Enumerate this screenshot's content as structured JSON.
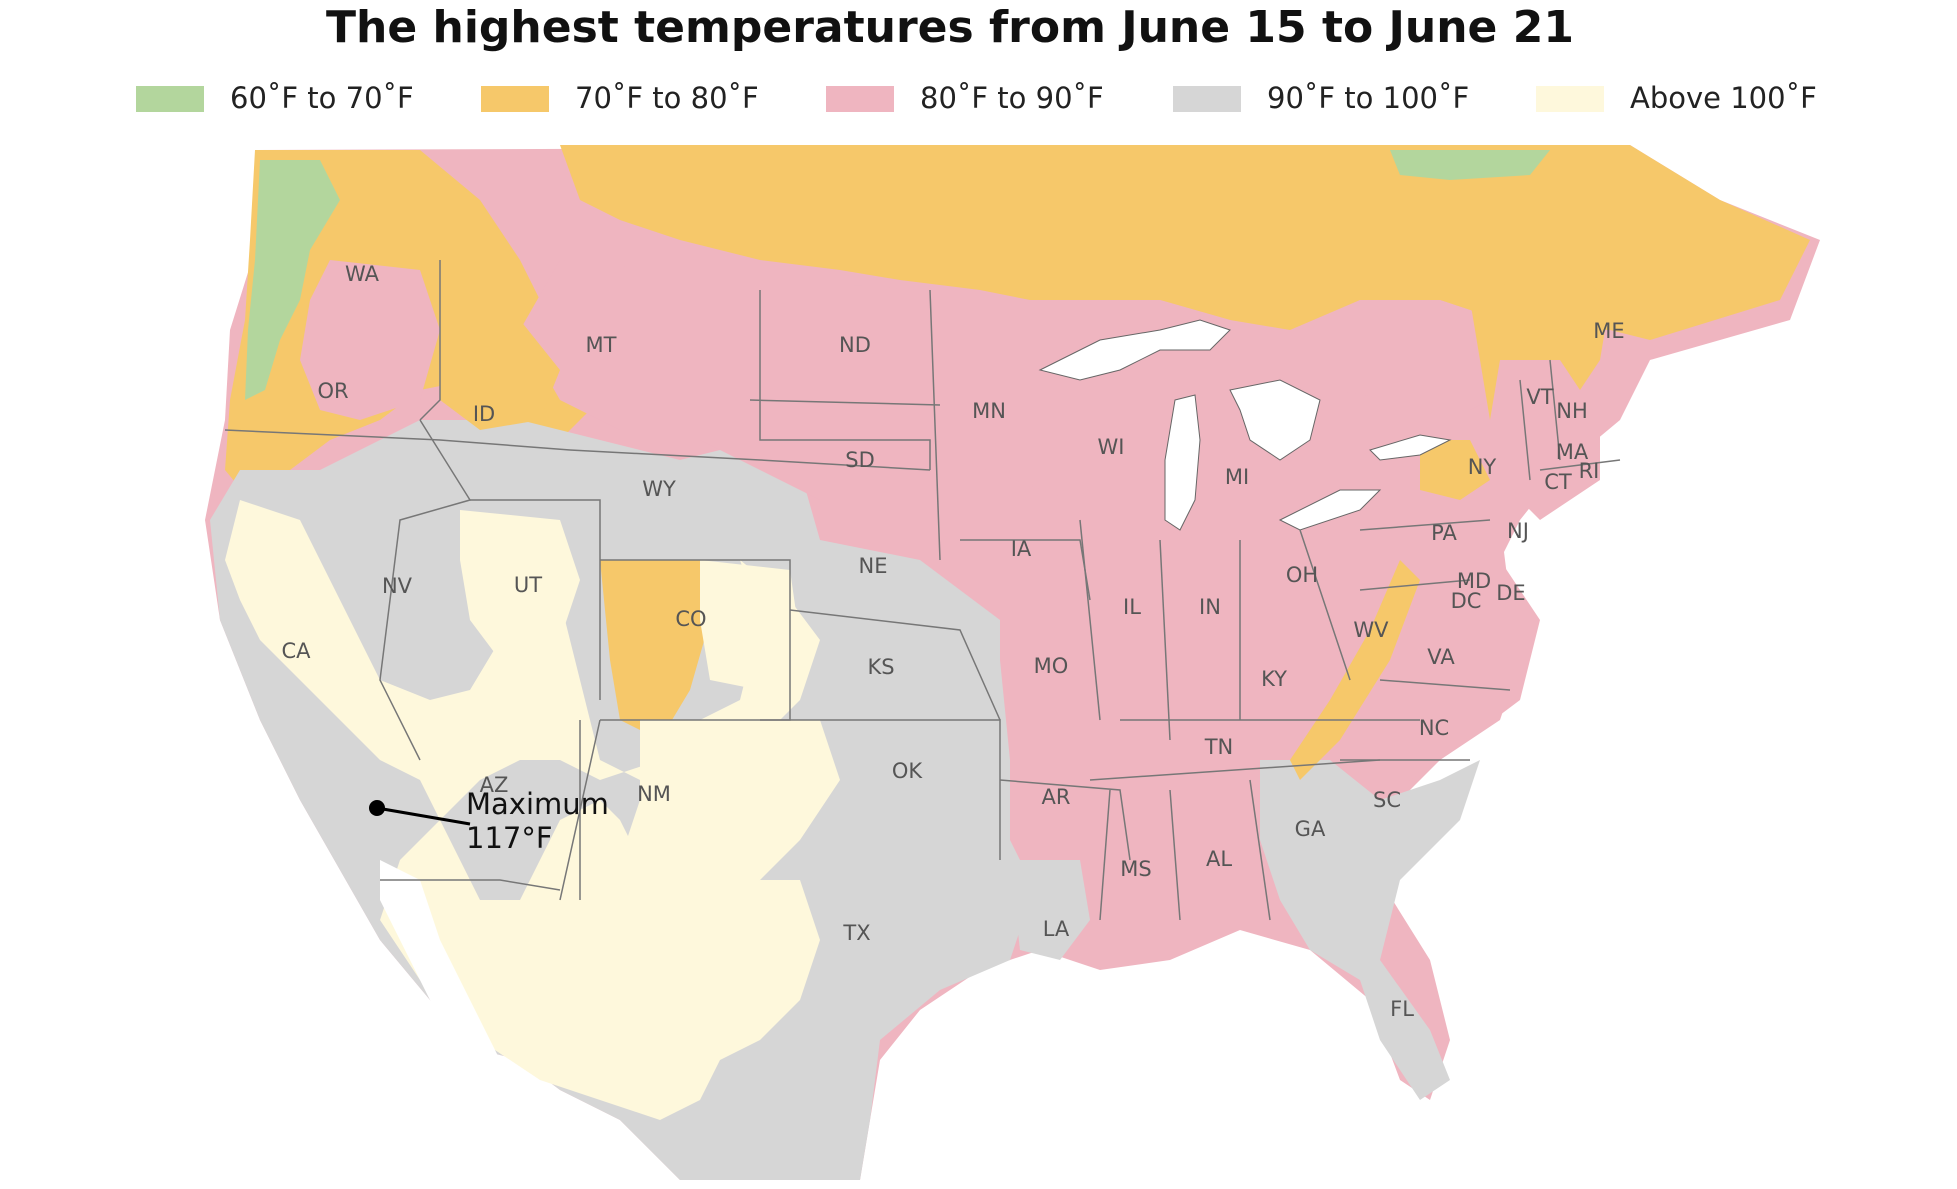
{
  "title": "The highest temperatures from June 15 to June 21",
  "legend": [
    {
      "label": "60˚F to 70˚F",
      "color": "#b3d69d"
    },
    {
      "label": "70˚F to 80˚F",
      "color": "#f6c86a"
    },
    {
      "label": "80˚F to 90˚F",
      "color": "#efb5c0"
    },
    {
      "label": "90˚F to 100˚F",
      "color": "#d6d6d6"
    },
    {
      "label": "Above 100˚F",
      "color": "#fef8dc"
    }
  ],
  "annotation": {
    "line1": "Maximum",
    "line2": "117°F"
  },
  "state_labels": [
    "WA",
    "OR",
    "CA",
    "NV",
    "ID",
    "MT",
    "WY",
    "UT",
    "AZ",
    "CO",
    "NM",
    "ND",
    "SD",
    "NE",
    "KS",
    "OK",
    "TX",
    "MN",
    "IA",
    "MO",
    "AR",
    "LA",
    "WI",
    "IL",
    "MI",
    "IN",
    "OH",
    "KY",
    "TN",
    "MS",
    "AL",
    "GA",
    "FL",
    "SC",
    "NC",
    "VA",
    "WV",
    "PA",
    "NY",
    "VT",
    "NH",
    "ME",
    "MA",
    "CT",
    "RI",
    "NJ",
    "MD",
    "DE",
    "DC"
  ]
}
